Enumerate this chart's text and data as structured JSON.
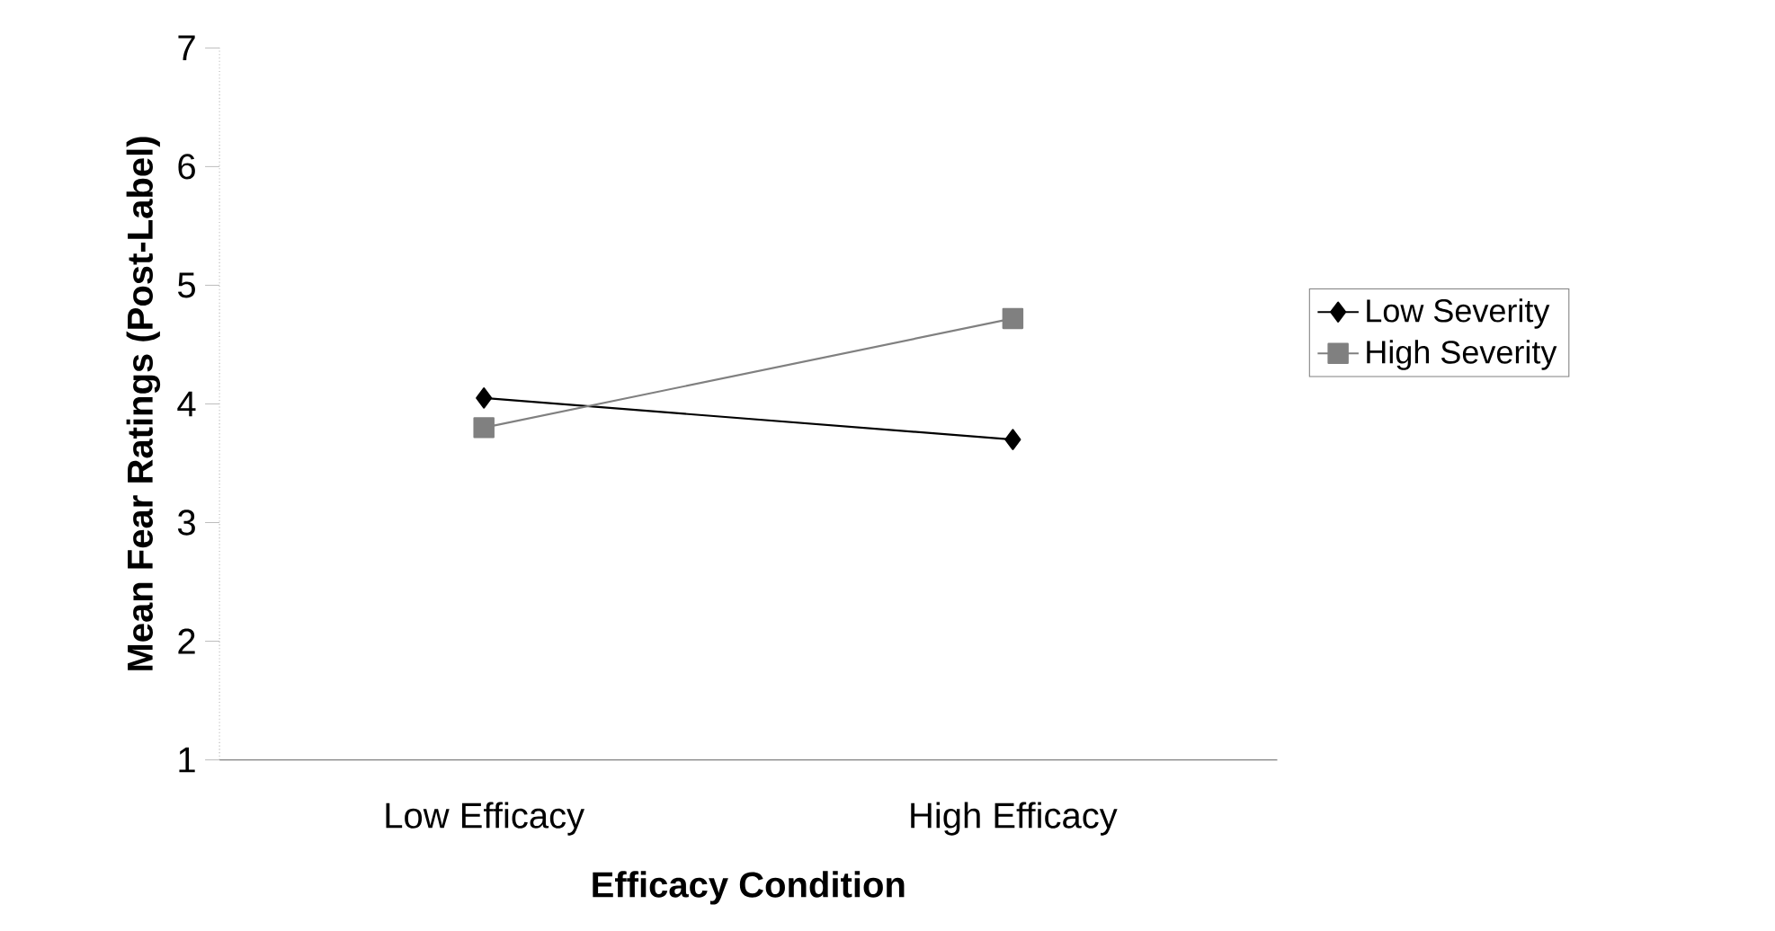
{
  "chart_data": {
    "type": "line",
    "xlabel": "Efficacy Condition",
    "ylabel": "Mean Fear Ratings (Post-Label)",
    "categories": [
      "Low Efficacy",
      "High Efficacy"
    ],
    "series": [
      {
        "name": "Low Severity",
        "color": "#000000",
        "marker": "diamond",
        "values": [
          4.05,
          3.7
        ]
      },
      {
        "name": "High Severity",
        "color": "#808080",
        "marker": "square",
        "values": [
          3.8,
          4.72
        ]
      }
    ],
    "ylim": [
      1,
      7
    ],
    "yticks": [
      1,
      2,
      3,
      4,
      5,
      6,
      7
    ],
    "grid": false,
    "legend": "right"
  }
}
